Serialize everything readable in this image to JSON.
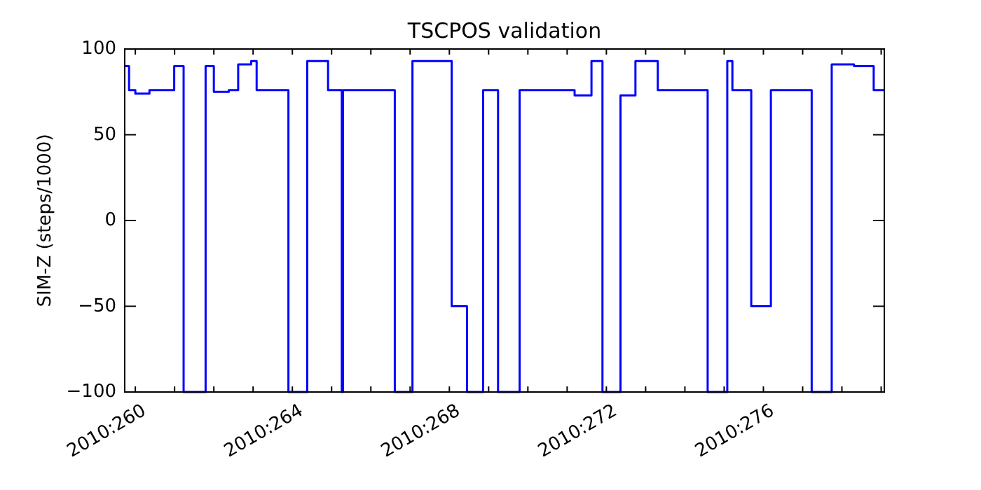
{
  "chart_data": {
    "type": "step",
    "title": "TSCPOS validation",
    "ylabel": "SIM-Z (steps/1000)",
    "x": [
      "2010-09-16T17:31",
      "2010-09-16T20:10",
      "2010-09-17T00:00",
      "2010-09-17T08:38",
      "2010-09-17T23:46",
      "2010-09-18T05:31",
      "2010-09-18T18:58",
      "2010-09-19T00:00",
      "2010-09-19T09:07",
      "2010-09-19T14:53",
      "2010-09-19T22:48",
      "2010-09-20T02:10",
      "2010-09-20T21:36",
      "2010-09-21T09:07",
      "2010-09-21T21:50",
      "2010-09-22T06:14",
      "2010-09-22T06:58",
      "2010-09-23T14:38",
      "2010-09-24T01:26",
      "2010-09-25T01:26",
      "2010-09-25T10:48",
      "2010-09-25T20:38",
      "2010-09-26T05:46",
      "2010-09-26T18:58",
      "2010-09-28T04:34",
      "2010-09-28T14:53",
      "2010-09-28T21:36",
      "2010-09-29T08:38",
      "2010-09-29T17:46",
      "2010-09-30T07:26",
      "2010-10-01T13:55",
      "2010-10-02T01:55",
      "2010-10-02T05:02",
      "2010-10-02T16:34",
      "2010-10-03T04:34",
      "2010-10-04T05:31",
      "2010-10-04T17:46",
      "2010-10-05T07:26",
      "2010-10-05T19:26",
      "2010-10-06T01:55"
    ],
    "series": [
      {
        "color": "#0000ff",
        "values": [
          90,
          76,
          74,
          76,
          90,
          -100,
          90,
          75,
          76,
          91,
          93,
          76,
          -100,
          93,
          76,
          -100,
          76,
          -100,
          93,
          -50,
          -100,
          76,
          -100,
          76,
          73,
          93,
          -100,
          73,
          93,
          76,
          -100,
          93,
          76,
          -50,
          76,
          -100,
          91,
          90,
          76,
          76
        ]
      }
    ],
    "xlim": [
      "2010-09-16T17:31",
      "2010-10-06T01:55"
    ],
    "xticks": [
      {
        "value": "2010-09-17",
        "label": "2010:260"
      },
      {
        "value": "2010-09-18",
        "label": null
      },
      {
        "value": "2010-09-19",
        "label": null
      },
      {
        "value": "2010-09-20",
        "label": null
      },
      {
        "value": "2010-09-21",
        "label": "2010:264"
      },
      {
        "value": "2010-09-22",
        "label": null
      },
      {
        "value": "2010-09-23",
        "label": null
      },
      {
        "value": "2010-09-24",
        "label": null
      },
      {
        "value": "2010-09-25",
        "label": "2010:268"
      },
      {
        "value": "2010-09-26",
        "label": null
      },
      {
        "value": "2010-09-27",
        "label": null
      },
      {
        "value": "2010-09-28",
        "label": null
      },
      {
        "value": "2010-09-29",
        "label": "2010:272"
      },
      {
        "value": "2010-09-30",
        "label": null
      },
      {
        "value": "2010-10-01",
        "label": null
      },
      {
        "value": "2010-10-02",
        "label": null
      },
      {
        "value": "2010-10-03",
        "label": "2010:276"
      },
      {
        "value": "2010-10-04",
        "label": null
      },
      {
        "value": "2010-10-05",
        "label": null
      },
      {
        "value": "2010-10-06",
        "label": null
      }
    ],
    "ylim": [
      -100,
      100
    ],
    "yticks": [
      -100,
      -50,
      0,
      50,
      100
    ]
  }
}
